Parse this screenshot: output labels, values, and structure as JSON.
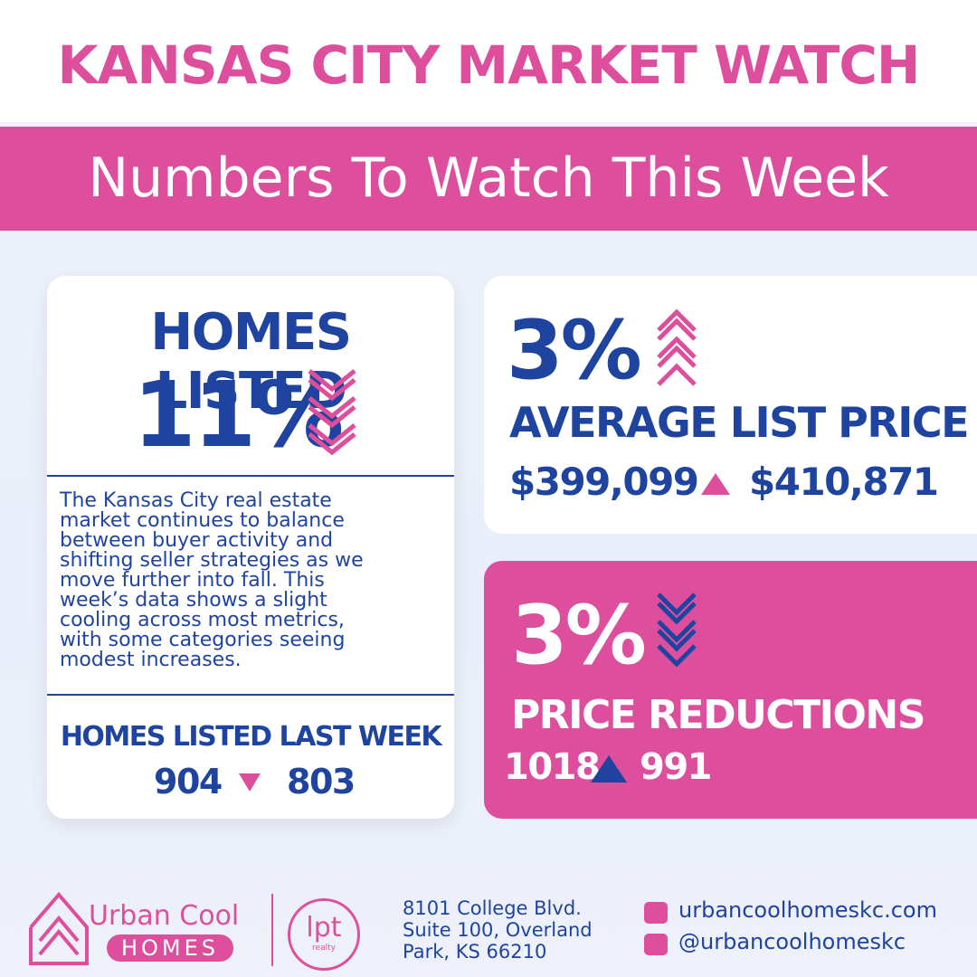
{
  "header": {
    "title": "KANSAS CITY MARKET WATCH",
    "subtitle": "Numbers To Watch This Week"
  },
  "homes_listed": {
    "heading": "HOMES LISTED",
    "change": "11%",
    "paragraph": [
      "The Kansas City real estate",
      "market continues to balance",
      "between buyer activity and",
      "shifting seller strategies as we",
      "move further into fall. This",
      "week’s data shows a slight",
      "cooling across most metrics,",
      "with some categories seeing",
      "modest increases."
    ],
    "last_week_label": "HOMES LISTED LAST WEEK",
    "previous": "904",
    "current": "803"
  },
  "list_price": {
    "change": "3%",
    "label": "AVERAGE LIST PRICE",
    "previous": "$399,099",
    "current": "$410,871"
  },
  "price_reductions": {
    "change": "3%",
    "label": "PRICE REDUCTIONS",
    "previous": "1018",
    "current": "991"
  },
  "footer": {
    "brand": "Urban Cool",
    "brand_sub": "HOMES",
    "partner": "lpt",
    "partner_sub": "realty",
    "address": [
      "8101 College Blvd.",
      "Suite 100, Overland",
      "Park, KS 66210"
    ],
    "website": "urbancoolhomeskc.com",
    "social": "@urbancoolhomeskc"
  }
}
